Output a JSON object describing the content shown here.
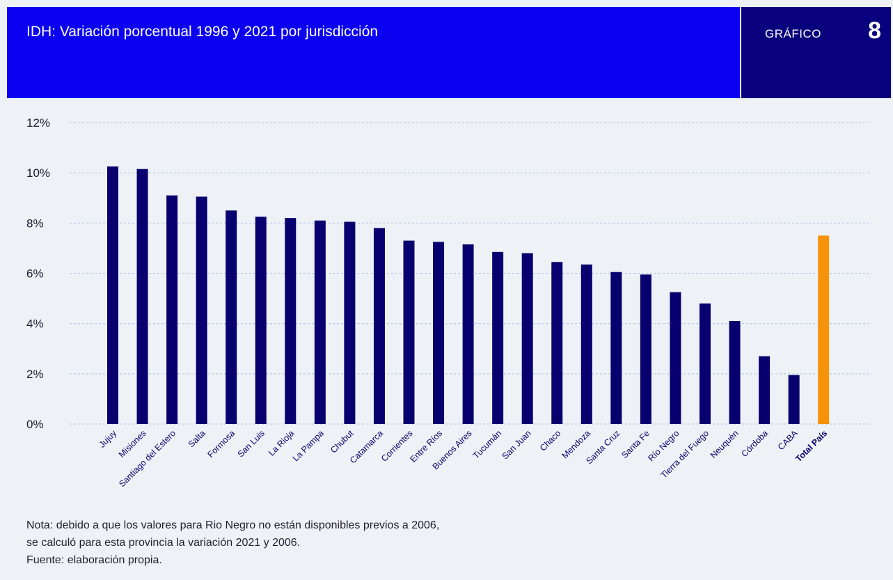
{
  "header": {
    "title": "IDH: Variación porcentual 1996 y 2021 por jurisdicción",
    "badge_label": "GRÁFICO",
    "badge_number": "8"
  },
  "colors": {
    "bar": "#08006e",
    "highlight_bar": "#f7930a",
    "title_bg": "#0b00f0",
    "badge_bg": "#08007c",
    "grid": "#a9c3e6"
  },
  "chart_data": {
    "type": "bar",
    "title": "IDH: Variación porcentual 1996 y 2021 por jurisdicción",
    "xlabel": "",
    "ylabel": "",
    "ylim": [
      0,
      12
    ],
    "yticks": [
      "0%",
      "2%",
      "4%",
      "6%",
      "8%",
      "10%",
      "12%"
    ],
    "grid": true,
    "highlight": "Total País",
    "categories": [
      "Jujuy",
      "Misiones",
      "Santiago del Estero",
      "Salta",
      "Formosa",
      "San Luis",
      "La Rioja",
      "La Pampa",
      "Chubut",
      "Catamarca",
      "Corrientes",
      "Entre Ríos",
      "Buenos Aires",
      "Tucumán",
      "San Juan",
      "Chaco",
      "Mendoza",
      "Santa Cruz",
      "Santa Fe",
      "Río Negro",
      "Tierra del Fuego",
      "Neuquén",
      "Córdoba",
      "CABA",
      "Total País"
    ],
    "values": [
      10.25,
      10.15,
      9.1,
      9.05,
      8.5,
      8.25,
      8.2,
      8.1,
      8.05,
      7.8,
      7.3,
      7.25,
      7.15,
      6.85,
      6.8,
      6.45,
      6.35,
      6.05,
      5.95,
      5.25,
      4.8,
      4.1,
      2.7,
      1.95,
      7.5
    ]
  },
  "notes": [
    "Nota: debido a que los valores para Rio Negro no están disponibles previos a 2006,",
    "se calculó para esta provincia la variación 2021 y 2006.",
    "Fuente: elaboración propia."
  ]
}
